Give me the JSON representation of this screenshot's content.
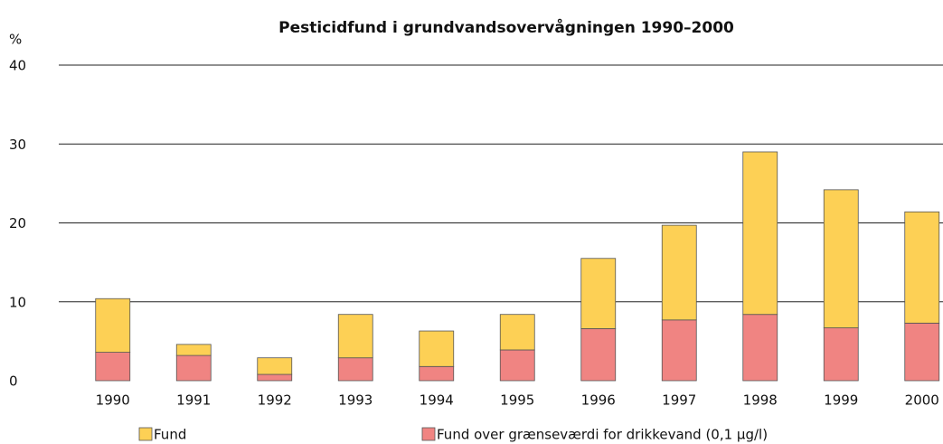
{
  "chart_data": {
    "type": "stacked_bar",
    "title": "Pesticidfund i grundvandsovervågningen 1990–2000",
    "y_label": "%",
    "categories": [
      "1990",
      "1991",
      "1992",
      "1993",
      "1994",
      "1995",
      "1996",
      "1997",
      "1998",
      "1999",
      "2000"
    ],
    "series": [
      {
        "name": "Fund",
        "color": "#fdd055",
        "values": [
          6.8,
          1.4,
          2.1,
          5.5,
          4.5,
          4.5,
          8.9,
          12.0,
          20.6,
          17.5,
          14.1
        ]
      },
      {
        "name": "Fund over grænseværdi for drikkevand (0,1 µg/l)",
        "color": "#f08482",
        "values": [
          3.6,
          3.2,
          0.8,
          2.9,
          1.8,
          3.9,
          6.6,
          7.7,
          8.4,
          6.7,
          7.3
        ]
      }
    ],
    "ylim": [
      0,
      40
    ],
    "yticks": [
      0,
      10,
      20,
      30,
      40
    ],
    "grid": true
  }
}
